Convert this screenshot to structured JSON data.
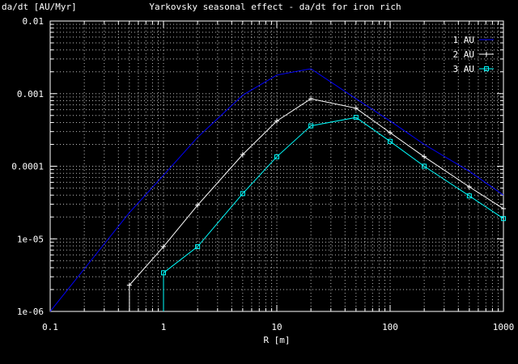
{
  "chart_data": {
    "type": "line",
    "title": "Yarkovsky seasonal effect - da/dt for iron rich",
    "xlabel": "R [m]",
    "ylabel": "da/dt [AU/Myr]",
    "xscale": "log",
    "yscale": "log",
    "xlim": [
      0.1,
      1000
    ],
    "ylim": [
      1e-06,
      0.01
    ],
    "xticks": [
      0.1,
      1,
      10,
      100,
      1000
    ],
    "xtick_labels": [
      "0.1",
      "1",
      "10",
      "100",
      "1000"
    ],
    "yticks": [
      1e-06,
      1e-05,
      0.0001,
      0.001,
      0.01
    ],
    "ytick_labels": [
      "1e-06",
      "1e-05",
      "0.0001",
      "0.001",
      "0.01"
    ],
    "grid": true,
    "legend_position": "top-right",
    "series": [
      {
        "name": "1 AU",
        "color": "#0000ff",
        "marker": "none",
        "points": [
          [
            0.1,
            1e-06
          ],
          [
            0.5,
            2.3e-05
          ],
          [
            1,
            7.5e-05
          ],
          [
            2,
            0.00025
          ],
          [
            5,
            0.00095
          ],
          [
            10,
            0.0018
          ],
          [
            20,
            0.0022
          ],
          [
            50,
            0.00085
          ],
          [
            100,
            0.00042
          ],
          [
            200,
            0.0002
          ],
          [
            500,
            8.5e-05
          ],
          [
            1000,
            4e-05
          ]
        ]
      },
      {
        "name": "2 AU",
        "color": "#ffffff",
        "marker": "plus",
        "points": [
          [
            0.5,
            1e-06
          ],
          [
            0.5,
            2.3e-06
          ],
          [
            1,
            7.8e-06
          ],
          [
            2,
            2.9e-05
          ],
          [
            5,
            0.000145
          ],
          [
            10,
            0.00042
          ],
          [
            20,
            0.00085
          ],
          [
            50,
            0.00063
          ],
          [
            100,
            0.00029
          ],
          [
            200,
            0.000135
          ],
          [
            500,
            5.2e-05
          ],
          [
            1000,
            2.6e-05
          ]
        ]
      },
      {
        "name": "3 AU",
        "color": "#00ffff",
        "marker": "square",
        "points": [
          [
            1,
            1e-06
          ],
          [
            1,
            3.4e-06
          ],
          [
            2,
            7.8e-06
          ],
          [
            5,
            4.2e-05
          ],
          [
            10,
            0.000135
          ],
          [
            20,
            0.00036
          ],
          [
            50,
            0.00047
          ],
          [
            100,
            0.00022
          ],
          [
            200,
            0.0001
          ],
          [
            500,
            3.9e-05
          ],
          [
            1000,
            1.9e-05
          ]
        ]
      }
    ]
  }
}
